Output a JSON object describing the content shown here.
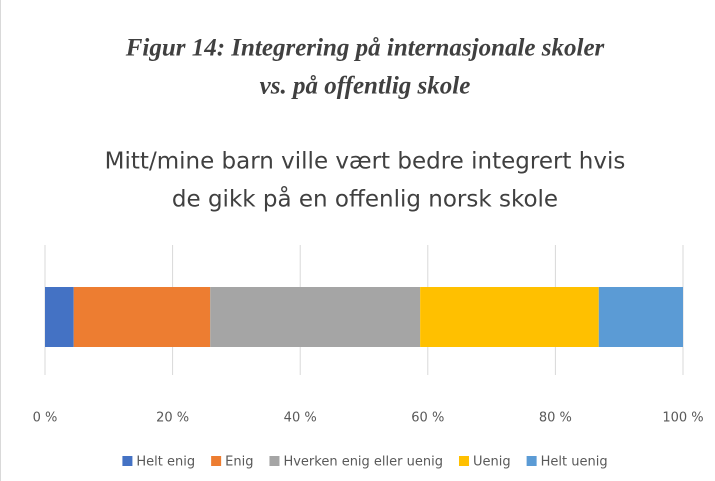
{
  "chart_data": {
    "type": "stacked-bar-horizontal",
    "heading": [
      "Figur 14: Integrering på internasjonale skoler",
      "vs. på offentlig skole"
    ],
    "title": [
      "Mitt/mine barn ville vært bedre integrert hvis",
      "de gikk på en offenlig norsk skole"
    ],
    "series": [
      {
        "name": "Helt enig",
        "color": "#4472c4",
        "values": [
          4.5
        ]
      },
      {
        "name": "Enig",
        "color": "#ed7d31",
        "values": [
          21.4
        ]
      },
      {
        "name": "Hverken enig eller uenig",
        "color": "#a5a5a5",
        "values": [
          32.9
        ]
      },
      {
        "name": "Uenig",
        "color": "#ffc000",
        "values": [
          28
        ]
      },
      {
        "name": "Helt uenig",
        "color": "#5b9bd5",
        "values": [
          13.2
        ]
      }
    ],
    "xlim": [
      0,
      100
    ],
    "xticks": [
      {
        "value": 0,
        "label": "0 %"
      },
      {
        "value": 20,
        "label": "20 %"
      },
      {
        "value": 40,
        "label": "40 %"
      },
      {
        "value": 60,
        "label": "60 %"
      },
      {
        "value": 80,
        "label": "80 %"
      },
      {
        "value": 100,
        "label": "100 %"
      }
    ],
    "grid": true,
    "legend": "bottom"
  }
}
